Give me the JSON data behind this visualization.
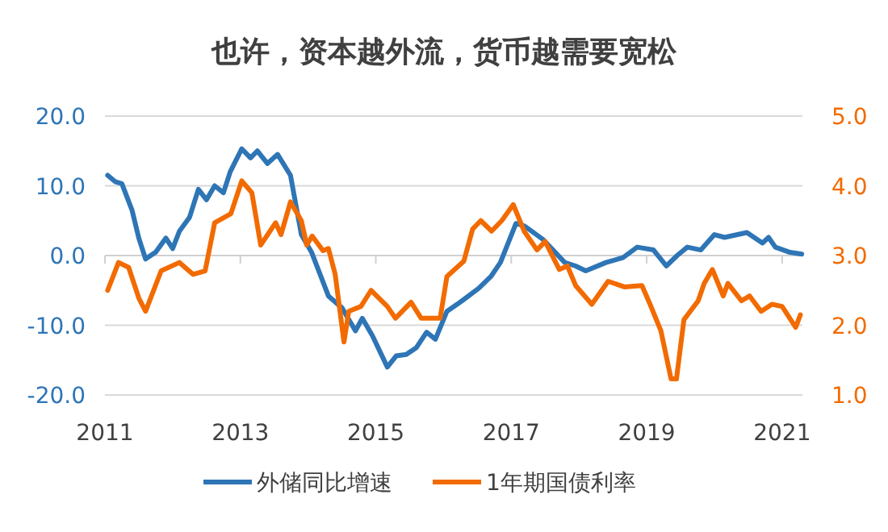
{
  "chart_data": {
    "type": "line",
    "title": "也许，资本越外流，货币越需要宽松",
    "xlim": [
      2011,
      2021.3
    ],
    "xticks": [
      2011,
      2013,
      2015,
      2017,
      2019,
      2021
    ],
    "ylim": [
      -20,
      20
    ],
    "yticks": [
      {
        "value": -20,
        "label": "-20.0"
      },
      {
        "value": -10,
        "label": "-10.0"
      },
      {
        "value": 0,
        "label": "0.0"
      },
      {
        "value": 10,
        "label": "10.0"
      },
      {
        "value": 20,
        "label": "20.0"
      }
    ],
    "y2lim": [
      1,
      5
    ],
    "y2ticks": [
      {
        "value": 1,
        "label": "1.0"
      },
      {
        "value": 2,
        "label": "2.0"
      },
      {
        "value": 3,
        "label": "3.0"
      },
      {
        "value": 4,
        "label": "4.0"
      },
      {
        "value": 5,
        "label": "5.0"
      }
    ],
    "grid": "y",
    "legend": "bottom",
    "marker": "none",
    "series": [
      {
        "name": "外储同比增速",
        "color": "#2e75b6",
        "x": [
          2011.04,
          2011.15,
          2011.25,
          2011.4,
          2011.5,
          2011.6,
          2011.75,
          2011.9,
          2012.0,
          2012.1,
          2012.25,
          2012.38,
          2012.5,
          2012.62,
          2012.75,
          2012.85,
          2013.02,
          2013.15,
          2013.25,
          2013.4,
          2013.55,
          2013.74,
          2013.9,
          2014.05,
          2014.3,
          2014.5,
          2014.7,
          2014.8,
          2014.95,
          2015.17,
          2015.3,
          2015.45,
          2015.6,
          2015.75,
          2015.88,
          2016.05,
          2016.2,
          2016.3,
          2016.52,
          2016.7,
          2016.84,
          2017.07,
          2017.2,
          2017.47,
          2017.79,
          2017.95,
          2018.1,
          2018.4,
          2018.65,
          2018.86,
          2019.1,
          2019.29,
          2019.45,
          2019.6,
          2019.8,
          2020.0,
          2020.15,
          2020.48,
          2020.71,
          2020.8,
          2020.9,
          2021.1,
          2021.29
        ],
        "values": [
          11.5,
          10.6,
          10.3,
          6.5,
          2.5,
          -0.5,
          0.5,
          2.5,
          1.0,
          3.5,
          5.5,
          9.5,
          8.0,
          10.0,
          9.0,
          12.0,
          15.3,
          14.0,
          15.0,
          13.2,
          14.5,
          11.5,
          3.0,
          0.5,
          -5.8,
          -7.5,
          -10.8,
          -9.0,
          -11.5,
          -16.0,
          -14.4,
          -14.2,
          -13.2,
          -11.0,
          -12.0,
          -8.0,
          -7.0,
          -6.3,
          -4.7,
          -3.0,
          -1.0,
          4.6,
          4.2,
          2.3,
          -1.0,
          -1.5,
          -2.2,
          -1.0,
          -0.3,
          1.2,
          0.8,
          -1.5,
          0.0,
          1.2,
          0.8,
          3.0,
          2.6,
          3.3,
          1.8,
          2.6,
          1.2,
          0.5,
          0.2
        ]
      },
      {
        "name": "1年期国债利率",
        "color": "#f26b00",
        "axis": "y2",
        "x": [
          2011.04,
          2011.2,
          2011.35,
          2011.5,
          2011.6,
          2011.83,
          2012.1,
          2012.3,
          2012.48,
          2012.62,
          2012.86,
          2013.02,
          2013.17,
          2013.3,
          2013.52,
          2013.6,
          2013.74,
          2013.9,
          2013.98,
          2014.06,
          2014.22,
          2014.3,
          2014.4,
          2014.53,
          2014.6,
          2014.78,
          2014.93,
          2015.17,
          2015.29,
          2015.52,
          2015.67,
          2015.95,
          2016.05,
          2016.3,
          2016.43,
          2016.55,
          2016.71,
          2016.86,
          2017.03,
          2017.19,
          2017.38,
          2017.5,
          2017.71,
          2017.83,
          2017.95,
          2018.19,
          2018.43,
          2018.67,
          2018.93,
          2019.05,
          2019.21,
          2019.36,
          2019.44,
          2019.55,
          2019.76,
          2019.85,
          2019.97,
          2020.13,
          2020.2,
          2020.4,
          2020.52,
          2020.69,
          2020.85,
          2021.0,
          2021.2,
          2021.27
        ],
        "values": [
          2.5,
          2.9,
          2.83,
          2.39,
          2.2,
          2.78,
          2.9,
          2.73,
          2.78,
          3.47,
          3.6,
          4.07,
          3.9,
          3.15,
          3.47,
          3.3,
          3.77,
          3.5,
          3.15,
          3.28,
          3.07,
          3.1,
          2.73,
          1.76,
          2.2,
          2.27,
          2.5,
          2.27,
          2.1,
          2.33,
          2.1,
          2.1,
          2.7,
          2.92,
          3.38,
          3.5,
          3.35,
          3.5,
          3.73,
          3.35,
          3.08,
          3.2,
          2.8,
          2.85,
          2.57,
          2.3,
          2.63,
          2.55,
          2.57,
          2.3,
          1.92,
          1.23,
          1.23,
          2.08,
          2.35,
          2.6,
          2.8,
          2.42,
          2.6,
          2.35,
          2.42,
          2.2,
          2.3,
          2.27,
          1.97,
          2.15
        ]
      }
    ]
  }
}
